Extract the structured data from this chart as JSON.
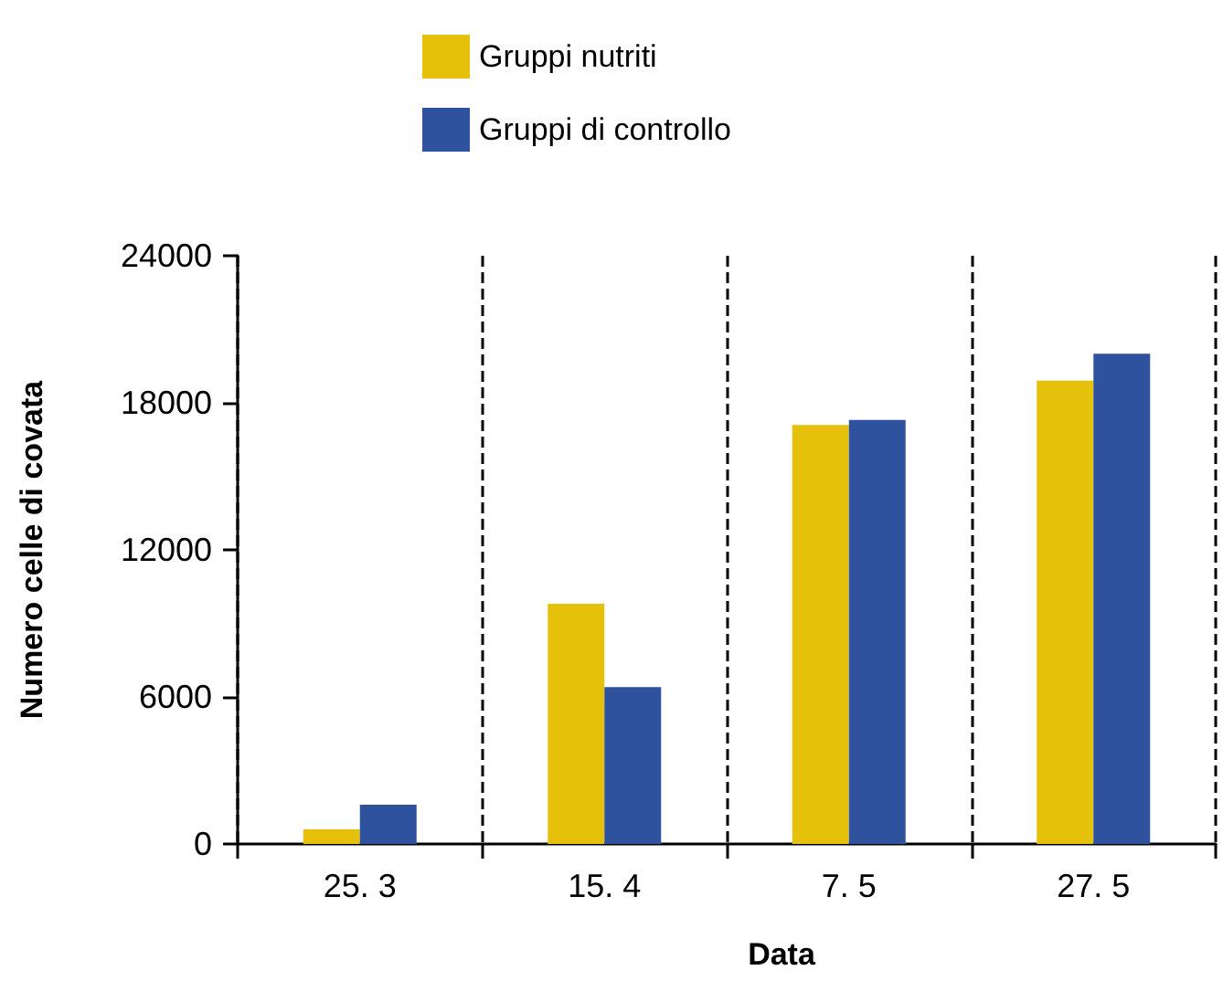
{
  "chart_data": {
    "type": "bar",
    "xlabel": "Data",
    "ylabel": "Numero celle di covata",
    "categories": [
      "25. 3",
      "15. 4",
      "7. 5",
      "27. 5"
    ],
    "series": [
      {
        "name": "Gruppi nutriti",
        "color": "#e6c10c",
        "values": [
          600,
          9800,
          17100,
          18900
        ]
      },
      {
        "name": "Gruppi di controllo",
        "color": "#2f529e",
        "values": [
          1600,
          6400,
          17300,
          20000
        ]
      }
    ],
    "ylim": [
      0,
      24000
    ],
    "yticks": [
      0,
      6000,
      12000,
      18000,
      24000
    ],
    "grid": "x",
    "legend": "top"
  }
}
